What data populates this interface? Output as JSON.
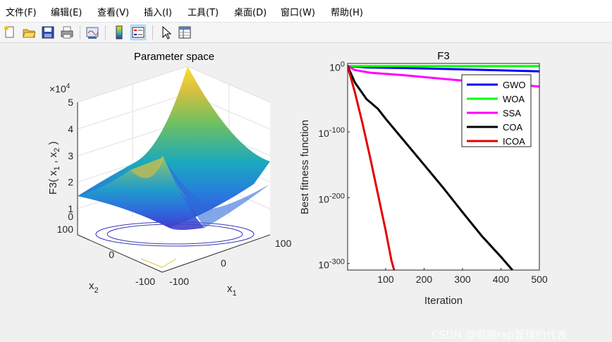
{
  "menu": {
    "items": [
      {
        "label": "文件(F)"
      },
      {
        "label": "编辑(E)"
      },
      {
        "label": "查看(V)"
      },
      {
        "label": "插入(I)"
      },
      {
        "label": "工具(T)"
      },
      {
        "label": "桌面(D)"
      },
      {
        "label": "窗口(W)"
      },
      {
        "label": "帮助(H)"
      }
    ]
  },
  "toolbar": {
    "buttons": [
      {
        "icon": "new-figure-icon"
      },
      {
        "icon": "open-file-icon"
      },
      {
        "icon": "save-icon"
      },
      {
        "icon": "print-icon"
      },
      {
        "icon": "link-plot-icon"
      },
      {
        "icon": "colorbar-icon"
      },
      {
        "icon": "legend-icon"
      },
      {
        "icon": "pointer-icon"
      },
      {
        "icon": "property-inspector-icon"
      }
    ]
  },
  "left_plot": {
    "title": "Parameter space",
    "zlabel": "F3( x",
    "zlabel_sub1": "1",
    "zlabel_mid": " , x",
    "zlabel_sub2": "2",
    "zlabel_end": " )",
    "exponent_base": "×10",
    "exponent_power": "4",
    "z_ticks": [
      "5",
      "4",
      "3",
      "2",
      "1",
      "0"
    ],
    "x2_ticks": [
      "100",
      "0",
      "-100"
    ],
    "x1_ticks": [
      "-100",
      "0",
      "100"
    ],
    "x1_label": "x",
    "x1_label_sub": "1",
    "x2_label": "x",
    "x2_label_sub": "2"
  },
  "chart_data": {
    "type": "line",
    "title": "F3",
    "xlabel": "Iteration",
    "ylabel": "Best fitness function",
    "xlim": [
      1,
      500
    ],
    "ylog_exponent_range": [
      -310,
      4
    ],
    "x_ticks": [
      "100",
      "200",
      "300",
      "400",
      "500"
    ],
    "y_ticks": [
      {
        "base": "10",
        "exp": "0",
        "value": 0
      },
      {
        "base": "10",
        "exp": "-100",
        "value": -100
      },
      {
        "base": "10",
        "exp": "-200",
        "value": -200
      },
      {
        "base": "10",
        "exp": "-300",
        "value": -300
      }
    ],
    "legend_position": "top-right",
    "series": [
      {
        "name": "GWO",
        "color": "#0000ff",
        "points": [
          [
            1,
            0
          ],
          [
            50,
            -2
          ],
          [
            150,
            -3
          ],
          [
            300,
            -5
          ],
          [
            500,
            -8
          ]
        ]
      },
      {
        "name": "WOA",
        "color": "#00ff00",
        "points": [
          [
            1,
            0
          ],
          [
            500,
            0
          ]
        ]
      },
      {
        "name": "SSA",
        "color": "#ff00ff",
        "points": [
          [
            1,
            0
          ],
          [
            20,
            -6
          ],
          [
            60,
            -10
          ],
          [
            150,
            -14
          ],
          [
            300,
            -22
          ],
          [
            500,
            -31
          ]
        ]
      },
      {
        "name": "COA",
        "color": "#000000",
        "points": [
          [
            1,
            0
          ],
          [
            20,
            -25
          ],
          [
            50,
            -50
          ],
          [
            80,
            -65
          ],
          [
            100,
            -80
          ],
          [
            150,
            -115
          ],
          [
            200,
            -150
          ],
          [
            250,
            -185
          ],
          [
            300,
            -222
          ],
          [
            350,
            -258
          ],
          [
            400,
            -290
          ],
          [
            430,
            -310
          ]
        ]
      },
      {
        "name": "ICOA",
        "color": "#e30000",
        "points": [
          [
            1,
            0
          ],
          [
            20,
            -40
          ],
          [
            40,
            -88
          ],
          [
            60,
            -140
          ],
          [
            80,
            -195
          ],
          [
            100,
            -250
          ],
          [
            115,
            -295
          ],
          [
            122,
            -310
          ]
        ]
      }
    ]
  },
  "watermark": "CSDN @唱跳rap篮球的代表"
}
